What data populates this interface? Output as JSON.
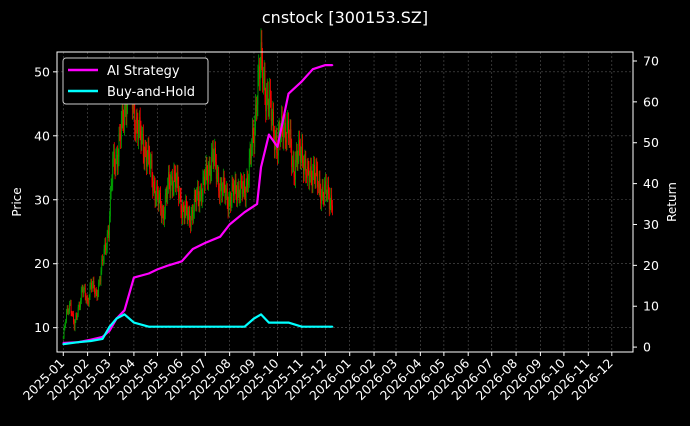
{
  "chart_data": {
    "type": "line",
    "title": "cnstock [300153.SZ]",
    "ylabel": "Price",
    "y2label": "Return",
    "ylim": [
      6.2,
      53.1
    ],
    "y2lim": [
      -1.2,
      72.2
    ],
    "yticks": [
      10,
      20,
      30,
      40,
      50
    ],
    "y2ticks": [
      0,
      10,
      20,
      30,
      40,
      50,
      60,
      70
    ],
    "x_tick_labels": [
      "2025-01",
      "2025-02",
      "2025-03",
      "2025-04",
      "2025-05",
      "2025-06",
      "2025-07",
      "2025-08",
      "2025-09",
      "2025-10",
      "2025-11",
      "2025-12",
      "2026-01",
      "2026-02",
      "2026-03",
      "2026-04",
      "2026-05",
      "2026-06",
      "2026-07",
      "2026-08",
      "2026-09",
      "2026-10",
      "2026-11",
      "2026-12"
    ],
    "grid": true,
    "legend_position": "top-left",
    "colors": {
      "background": "#000000",
      "ai_strategy": "#ff00ff",
      "buy_and_hold": "#00ffff",
      "candle_up": "#00a000",
      "candle_down": "#ff0000",
      "grid": "#555555"
    },
    "series": [
      {
        "name": "AI Strategy",
        "axis": "right",
        "values": [
          [
            "2025-01-01",
            1
          ],
          [
            "2025-01-20",
            1.2
          ],
          [
            "2025-02-05",
            1.8
          ],
          [
            "2025-02-20",
            2.5
          ],
          [
            "2025-03-01",
            4
          ],
          [
            "2025-03-10",
            7
          ],
          [
            "2025-03-20",
            9
          ],
          [
            "2025-04-01",
            17
          ],
          [
            "2025-04-20",
            18
          ],
          [
            "2025-05-01",
            19
          ],
          [
            "2025-05-15",
            20
          ],
          [
            "2025-06-01",
            21
          ],
          [
            "2025-06-15",
            24
          ],
          [
            "2025-07-01",
            25.5
          ],
          [
            "2025-07-20",
            27
          ],
          [
            "2025-08-01",
            30
          ],
          [
            "2025-08-20",
            33
          ],
          [
            "2025-09-05",
            35
          ],
          [
            "2025-09-10",
            44
          ],
          [
            "2025-09-20",
            52
          ],
          [
            "2025-10-01",
            49
          ],
          [
            "2025-10-15",
            62
          ],
          [
            "2025-11-01",
            65
          ],
          [
            "2025-11-15",
            68
          ],
          [
            "2025-12-01",
            69
          ],
          [
            "2025-12-10",
            69
          ]
        ]
      },
      {
        "name": "Buy-and-Hold",
        "axis": "right",
        "values": [
          [
            "2025-01-01",
            0.7
          ],
          [
            "2025-01-20",
            1.2
          ],
          [
            "2025-02-05",
            1.5
          ],
          [
            "2025-02-20",
            2
          ],
          [
            "2025-03-01",
            5
          ],
          [
            "2025-03-10",
            7
          ],
          [
            "2025-03-20",
            8
          ],
          [
            "2025-04-01",
            6
          ],
          [
            "2025-04-20",
            5
          ],
          [
            "2025-05-01",
            5
          ],
          [
            "2025-05-15",
            5
          ],
          [
            "2025-06-01",
            5
          ],
          [
            "2025-06-15",
            5
          ],
          [
            "2025-07-01",
            5
          ],
          [
            "2025-07-20",
            5
          ],
          [
            "2025-08-01",
            5
          ],
          [
            "2025-08-20",
            5
          ],
          [
            "2025-09-01",
            7
          ],
          [
            "2025-09-10",
            8
          ],
          [
            "2025-09-20",
            6
          ],
          [
            "2025-10-01",
            6
          ],
          [
            "2025-10-15",
            6
          ],
          [
            "2025-11-01",
            5
          ],
          [
            "2025-11-15",
            5
          ],
          [
            "2025-12-01",
            5
          ],
          [
            "2025-12-10",
            5
          ]
        ]
      },
      {
        "name": "",
        "axis": "left",
        "type": "candlestick-close",
        "values": [
          [
            "2025-01-01",
            8.5
          ],
          [
            "2025-01-05",
            12
          ],
          [
            "2025-01-10",
            14
          ],
          [
            "2025-01-15",
            10
          ],
          [
            "2025-01-20",
            13
          ],
          [
            "2025-01-25",
            16
          ],
          [
            "2025-02-01",
            14
          ],
          [
            "2025-02-05",
            17
          ],
          [
            "2025-02-12",
            15
          ],
          [
            "2025-02-20",
            20
          ],
          [
            "2025-02-28",
            26
          ],
          [
            "2025-03-05",
            35
          ],
          [
            "2025-03-12",
            38
          ],
          [
            "2025-03-20",
            44
          ],
          [
            "2025-03-25",
            49
          ],
          [
            "2025-04-01",
            44
          ],
          [
            "2025-04-08",
            40
          ],
          [
            "2025-04-15",
            38
          ],
          [
            "2025-04-22",
            35
          ],
          [
            "2025-05-01",
            30
          ],
          [
            "2025-05-08",
            28
          ],
          [
            "2025-05-15",
            32
          ],
          [
            "2025-05-22",
            34
          ],
          [
            "2025-06-01",
            29
          ],
          [
            "2025-06-10",
            27
          ],
          [
            "2025-06-20",
            30
          ],
          [
            "2025-07-01",
            33
          ],
          [
            "2025-07-10",
            37
          ],
          [
            "2025-07-20",
            32
          ],
          [
            "2025-08-01",
            30
          ],
          [
            "2025-08-10",
            32
          ],
          [
            "2025-08-20",
            31
          ],
          [
            "2025-09-01",
            40
          ],
          [
            "2025-09-05",
            48
          ],
          [
            "2025-09-10",
            51
          ],
          [
            "2025-09-18",
            46
          ],
          [
            "2025-09-25",
            42
          ],
          [
            "2025-10-01",
            38
          ],
          [
            "2025-10-08",
            42
          ],
          [
            "2025-10-15",
            40
          ],
          [
            "2025-10-22",
            35
          ],
          [
            "2025-11-01",
            38
          ],
          [
            "2025-11-08",
            33
          ],
          [
            "2025-11-15",
            35
          ],
          [
            "2025-11-22",
            32
          ],
          [
            "2025-12-01",
            31
          ],
          [
            "2025-12-10",
            30
          ]
        ]
      }
    ]
  }
}
